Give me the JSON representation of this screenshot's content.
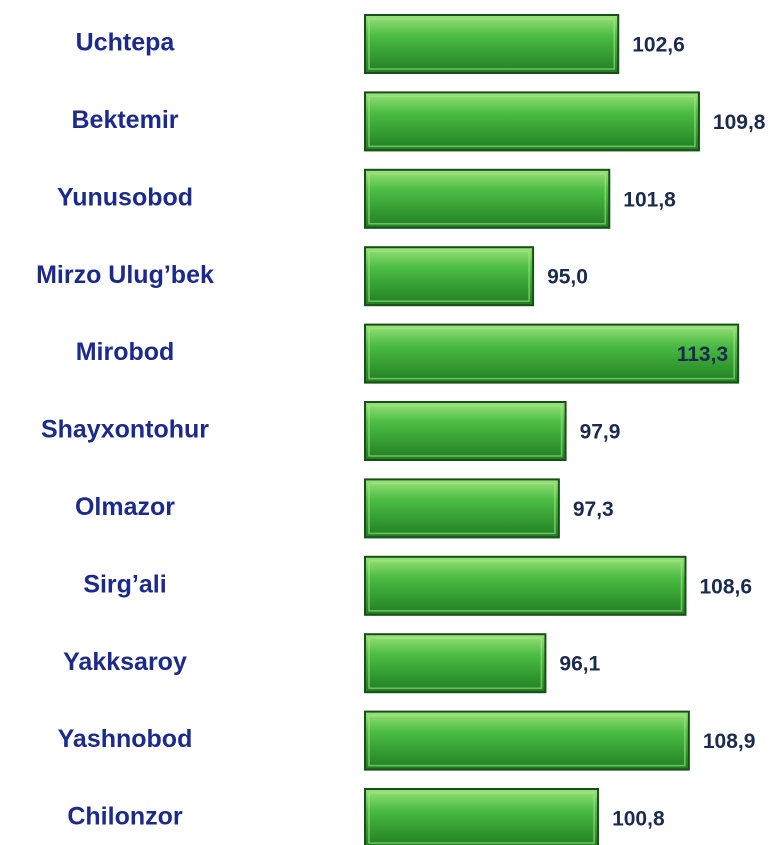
{
  "chart_data": {
    "type": "barh",
    "categories": [
      "Uchtepa",
      "Bektemir",
      "Yunusobod",
      "Mirzo Ulug’bek",
      "Mirobod",
      "Shayxontohur",
      "Olmazor",
      "Sirg’ali",
      "Yakksaroy",
      "Yashnobod",
      "Chilonzor"
    ],
    "values": [
      102.6,
      109.8,
      101.8,
      95.0,
      113.3,
      97.9,
      97.3,
      108.6,
      96.1,
      108.9,
      100.8
    ],
    "value_labels": [
      "102,6",
      "109,8",
      "101,8",
      "95,0",
      "113,3",
      "97,9",
      "97,3",
      "108,6",
      "96,1",
      "108,9",
      "100,8"
    ],
    "color": "#35a535",
    "xlim": [
      80,
      114
    ]
  }
}
